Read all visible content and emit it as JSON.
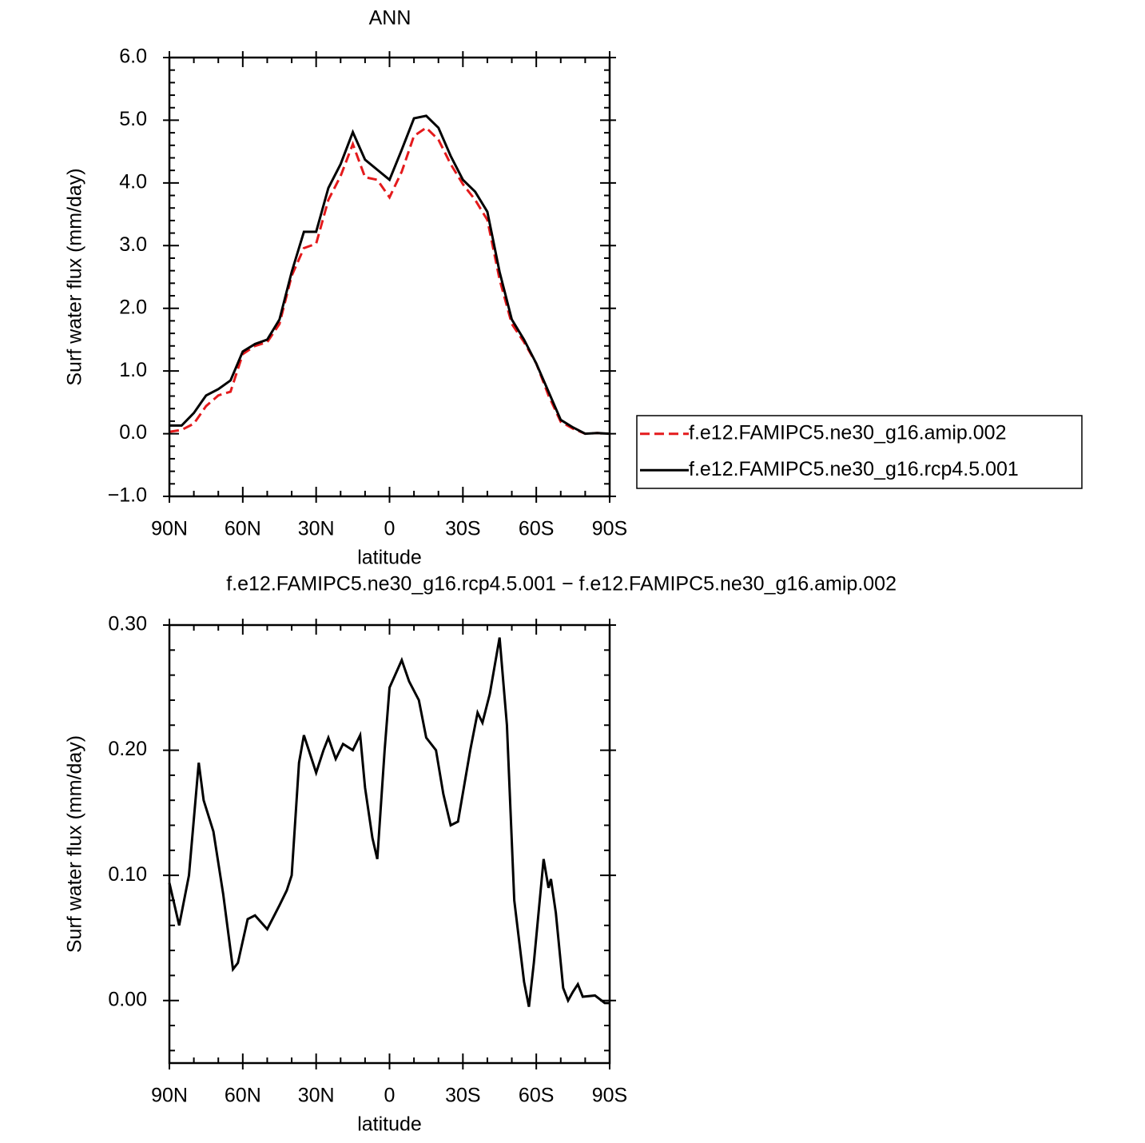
{
  "chart_data": [
    {
      "type": "line",
      "title": "ANN",
      "xlabel": "latitude",
      "ylabel": "Surf water flux (mm/day)",
      "x": [
        90,
        85,
        80,
        75,
        70,
        65,
        60,
        55,
        50,
        45,
        40,
        35,
        30,
        25,
        20,
        15,
        10,
        5,
        0,
        -5,
        -10,
        -15,
        -20,
        -25,
        -30,
        -35,
        -40,
        -45,
        -50,
        -55,
        -60,
        -65,
        -70,
        -75,
        -80,
        -85,
        -90
      ],
      "series": [
        {
          "name": "f.e12.FAMIPC5.ne30_g16.amip.002",
          "color": "#e41a1c",
          "line_style": "dashed",
          "values": [
            0.03,
            0.06,
            0.16,
            0.44,
            0.61,
            0.67,
            1.27,
            1.4,
            1.46,
            1.75,
            2.52,
            2.96,
            3.03,
            3.73,
            4.11,
            4.62,
            4.09,
            4.05,
            3.77,
            4.18,
            4.75,
            4.88,
            4.69,
            4.3,
            3.98,
            3.73,
            3.41,
            2.46,
            1.75,
            1.46,
            1.12,
            0.61,
            0.19,
            0.08,
            0.0,
            0.01,
            0.0
          ]
        },
        {
          "name": "f.e12.FAMIPC5.ne30_g16.rcp4.5.001",
          "color": "#000000",
          "line_style": "solid",
          "values": [
            0.13,
            0.13,
            0.33,
            0.61,
            0.71,
            0.85,
            1.31,
            1.43,
            1.5,
            1.82,
            2.58,
            3.22,
            3.22,
            3.92,
            4.3,
            4.81,
            4.37,
            4.21,
            4.05,
            4.53,
            5.03,
            5.07,
            4.88,
            4.43,
            4.05,
            3.86,
            3.54,
            2.58,
            1.82,
            1.5,
            1.12,
            0.67,
            0.22,
            0.1,
            0.0,
            0.01,
            0.0
          ]
        }
      ],
      "xlim": [
        90,
        -90
      ],
      "xticks": [
        {
          "value": 90,
          "label": "90N"
        },
        {
          "value": 60,
          "label": "60N"
        },
        {
          "value": 30,
          "label": "30N"
        },
        0,
        {
          "value": -30,
          "label": "30S"
        },
        {
          "value": -60,
          "label": "60S"
        },
        {
          "value": -90,
          "label": "90S"
        }
      ],
      "ylim": [
        -1.0,
        6.0
      ],
      "yticks": [
        {
          "value": -1,
          "label": "−1.0"
        },
        {
          "value": 0,
          "label": "0.0"
        },
        {
          "value": 1,
          "label": "1.0"
        },
        {
          "value": 2,
          "label": "2.0"
        },
        {
          "value": 3,
          "label": "3.0"
        },
        {
          "value": 4,
          "label": "4.0"
        },
        {
          "value": 5,
          "label": "5.0"
        },
        {
          "value": 6,
          "label": "6.0"
        }
      ],
      "legend": "right"
    },
    {
      "type": "line",
      "title": "f.e12.FAMIPC5.ne30_g16.rcp4.5.001 − f.e12.FAMIPC5.ne30_g16.amip.002",
      "xlabel": "latitude",
      "ylabel": "Surf water flux (mm/day)",
      "x": [
        90,
        86,
        82,
        78,
        76,
        72,
        68,
        64,
        62,
        58,
        55,
        50,
        45,
        42,
        40,
        37,
        35,
        30,
        27,
        25,
        22,
        19,
        15,
        12,
        10,
        7,
        5,
        2,
        0,
        -5,
        -8,
        -12,
        -15,
        -19,
        -22,
        -25,
        -28,
        -33,
        -36,
        -38,
        -41,
        -45,
        -48,
        -51,
        -55,
        -57,
        -59,
        -63,
        -65,
        -66,
        -68,
        -71,
        -73,
        -75,
        -77,
        -79,
        -84,
        -88,
        -90
      ],
      "series": [
        {
          "color": "#000000",
          "line_style": "solid",
          "values": [
            0.094,
            0.06,
            0.1,
            0.19,
            0.16,
            0.135,
            0.085,
            0.025,
            0.03,
            0.065,
            0.068,
            0.057,
            0.076,
            0.088,
            0.1,
            0.19,
            0.212,
            0.182,
            0.2,
            0.21,
            0.193,
            0.205,
            0.2,
            0.212,
            0.17,
            0.13,
            0.113,
            0.2,
            0.25,
            0.272,
            0.255,
            0.24,
            0.21,
            0.2,
            0.165,
            0.14,
            0.143,
            0.2,
            0.23,
            0.222,
            0.245,
            0.29,
            0.22,
            0.08,
            0.015,
            -0.005,
            0.03,
            0.113,
            0.09,
            0.097,
            0.07,
            0.01,
            0.0,
            0.007,
            0.013,
            0.003,
            0.004,
            -0.002,
            -0.002
          ]
        }
      ],
      "xlim": [
        90,
        -90
      ],
      "xticks": [
        {
          "value": 90,
          "label": "90N"
        },
        {
          "value": 60,
          "label": "60N"
        },
        {
          "value": 30,
          "label": "30N"
        },
        0,
        {
          "value": -30,
          "label": "30S"
        },
        {
          "value": -60,
          "label": "60S"
        },
        {
          "value": -90,
          "label": "90S"
        }
      ],
      "ylim": [
        -0.05,
        0.3
      ],
      "yticks": [
        {
          "value": 0,
          "label": "0.00"
        },
        {
          "value": 0.1,
          "label": "0.10"
        },
        {
          "value": 0.2,
          "label": "0.20"
        },
        {
          "value": 0.3,
          "label": "0.30"
        }
      ]
    }
  ]
}
